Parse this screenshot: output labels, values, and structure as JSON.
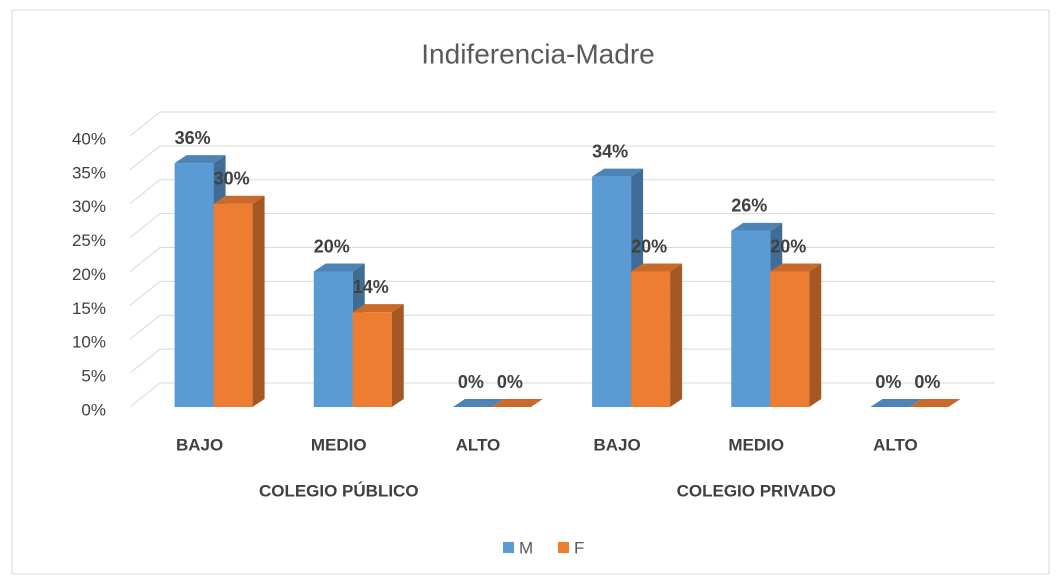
{
  "chart_data": {
    "type": "bar3d",
    "title": "Indiferencia-Madre",
    "categories": [
      "BAJO",
      "MEDIO",
      "ALTO",
      "BAJO",
      "MEDIO",
      "ALTO"
    ],
    "groups": [
      "COLEGIO PÚBLICO",
      "COLEGIO PRIVADO"
    ],
    "series": [
      {
        "name": "M",
        "color": "#5b9bd5",
        "values": [
          36,
          20,
          0,
          34,
          26,
          0
        ],
        "value_labels": [
          "36%",
          "20%",
          "0%",
          "34%",
          "26%",
          "0%"
        ]
      },
      {
        "name": "F",
        "color": "#ed7d31",
        "values": [
          30,
          14,
          0,
          20,
          20,
          0
        ],
        "value_labels": [
          "30%",
          "14%",
          "0%",
          "20%",
          "20%",
          "0%"
        ]
      }
    ],
    "ylim": [
      0,
      40
    ],
    "yticks": [
      {
        "value": 0,
        "label": "0%"
      },
      {
        "value": 5,
        "label": "5%"
      },
      {
        "value": 10,
        "label": "10%"
      },
      {
        "value": 15,
        "label": "15%"
      },
      {
        "value": 20,
        "label": "20%"
      },
      {
        "value": 25,
        "label": "25%"
      },
      {
        "value": 30,
        "label": "30%"
      },
      {
        "value": 35,
        "label": "35%"
      },
      {
        "value": 40,
        "label": "40%"
      }
    ],
    "grid": true,
    "legend": "bottom"
  }
}
